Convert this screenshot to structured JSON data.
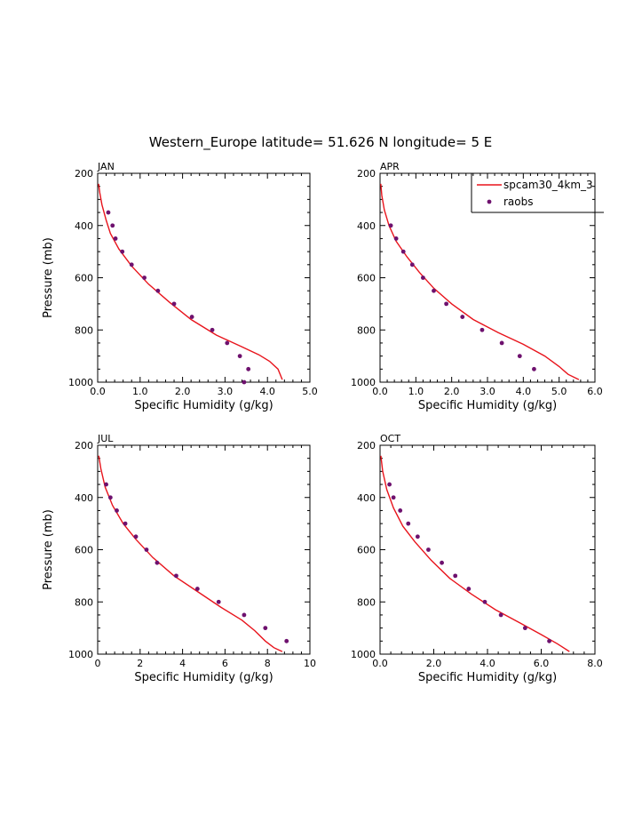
{
  "title": "Western_Europe  latitude= 51.626 N longitude= 5 E",
  "colors": {
    "model": "#e8141c",
    "obs": "#6e116e",
    "axis": "#000000"
  },
  "legend": {
    "model_label": "spcam30_4km_3",
    "obs_label": "raobs"
  },
  "chart_data": [
    {
      "type": "line",
      "panel": "JAN",
      "xlabel": "Specific Humidity (g/kg)",
      "ylabel": "Pressure (mb)",
      "xlim": [
        0,
        5
      ],
      "xticks": [
        "0.0",
        "1.0",
        "2.0",
        "3.0",
        "4.0",
        "5.0"
      ],
      "ylim": [
        1000,
        200
      ],
      "yticks": [
        "200",
        "400",
        "600",
        "800",
        "1000"
      ],
      "series": [
        {
          "name": "spcam30_4km_3",
          "kind": "line",
          "x": [
            0.02,
            0.05,
            0.1,
            0.2,
            0.3,
            0.5,
            0.8,
            1.2,
            1.7,
            2.2,
            2.8,
            3.4,
            3.8,
            4.05,
            4.25,
            4.35
          ],
          "y": [
            240,
            275,
            320,
            380,
            430,
            490,
            555,
            625,
            695,
            760,
            820,
            865,
            895,
            920,
            950,
            990
          ]
        },
        {
          "name": "raobs",
          "kind": "scatter",
          "x": [
            0.25,
            0.35,
            0.42,
            0.58,
            0.8,
            1.1,
            1.42,
            1.8,
            2.22,
            2.7,
            3.05,
            3.35,
            3.55,
            3.45
          ],
          "y": [
            350,
            400,
            450,
            500,
            550,
            600,
            650,
            700,
            750,
            800,
            850,
            900,
            950,
            1000
          ]
        }
      ]
    },
    {
      "type": "line",
      "panel": "APR",
      "xlabel": "Specific Humidity (g/kg)",
      "ylabel": "",
      "xlim": [
        0,
        6
      ],
      "xticks": [
        "0.0",
        "1.0",
        "2.0",
        "3.0",
        "4.0",
        "5.0",
        "6.0"
      ],
      "ylim": [
        1000,
        200
      ],
      "yticks": [
        "200",
        "400",
        "600",
        "800",
        "1000"
      ],
      "series": [
        {
          "name": "spcam30_4km_3",
          "kind": "line",
          "x": [
            0.02,
            0.05,
            0.12,
            0.25,
            0.45,
            0.75,
            1.1,
            1.5,
            2.0,
            2.6,
            3.3,
            4.0,
            4.6,
            5.0,
            5.25,
            5.55
          ],
          "y": [
            240,
            285,
            340,
            400,
            460,
            520,
            580,
            640,
            700,
            760,
            810,
            855,
            900,
            940,
            970,
            990
          ]
        },
        {
          "name": "raobs",
          "kind": "scatter",
          "x": [
            0.3,
            0.45,
            0.65,
            0.9,
            1.2,
            1.5,
            1.85,
            2.3,
            2.85,
            3.4,
            3.9,
            4.3
          ],
          "y": [
            400,
            450,
            500,
            550,
            600,
            650,
            700,
            750,
            800,
            850,
            900,
            950
          ]
        }
      ]
    },
    {
      "type": "line",
      "panel": "JUL",
      "xlabel": "Specific Humidity (g/kg)",
      "ylabel": "Pressure (mb)",
      "xlim": [
        0,
        10
      ],
      "xticks": [
        "0",
        "2",
        "4",
        "6",
        "8",
        "10"
      ],
      "ylim": [
        1000,
        200
      ],
      "yticks": [
        "200",
        "400",
        "600",
        "800",
        "1000"
      ],
      "series": [
        {
          "name": "spcam30_4km_3",
          "kind": "line",
          "x": [
            0.05,
            0.15,
            0.35,
            0.7,
            1.2,
            1.8,
            2.6,
            3.6,
            4.7,
            5.8,
            6.8,
            7.4,
            7.9,
            8.3,
            8.7
          ],
          "y": [
            240,
            290,
            360,
            430,
            500,
            560,
            630,
            700,
            760,
            820,
            870,
            910,
            950,
            975,
            990
          ]
        },
        {
          "name": "raobs",
          "kind": "scatter",
          "x": [
            0.4,
            0.6,
            0.9,
            1.3,
            1.8,
            2.3,
            2.8,
            3.7,
            4.7,
            5.7,
            6.9,
            7.9,
            8.9
          ],
          "y": [
            350,
            400,
            450,
            500,
            550,
            600,
            650,
            700,
            750,
            800,
            850,
            900,
            950
          ]
        }
      ]
    },
    {
      "type": "line",
      "panel": "OCT",
      "xlabel": "Specific Humidity (g/kg)",
      "ylabel": "",
      "xlim": [
        0,
        8
      ],
      "xticks": [
        "0.0",
        "2.0",
        "4.0",
        "6.0",
        "8.0"
      ],
      "ylim": [
        1000,
        200
      ],
      "yticks": [
        "200",
        "400",
        "600",
        "800",
        "1000"
      ],
      "series": [
        {
          "name": "spcam30_4km_3",
          "kind": "line",
          "x": [
            0.03,
            0.1,
            0.25,
            0.5,
            0.85,
            1.3,
            1.9,
            2.6,
            3.4,
            4.3,
            5.2,
            6.0,
            6.6,
            7.05
          ],
          "y": [
            240,
            300,
            370,
            440,
            510,
            570,
            640,
            710,
            770,
            830,
            880,
            925,
            960,
            990
          ]
        },
        {
          "name": "raobs",
          "kind": "scatter",
          "x": [
            0.35,
            0.5,
            0.75,
            1.05,
            1.4,
            1.8,
            2.3,
            2.8,
            3.3,
            3.9,
            4.5,
            5.4,
            6.3
          ],
          "y": [
            350,
            400,
            450,
            500,
            550,
            600,
            650,
            700,
            750,
            800,
            850,
            900,
            950
          ]
        }
      ]
    }
  ]
}
